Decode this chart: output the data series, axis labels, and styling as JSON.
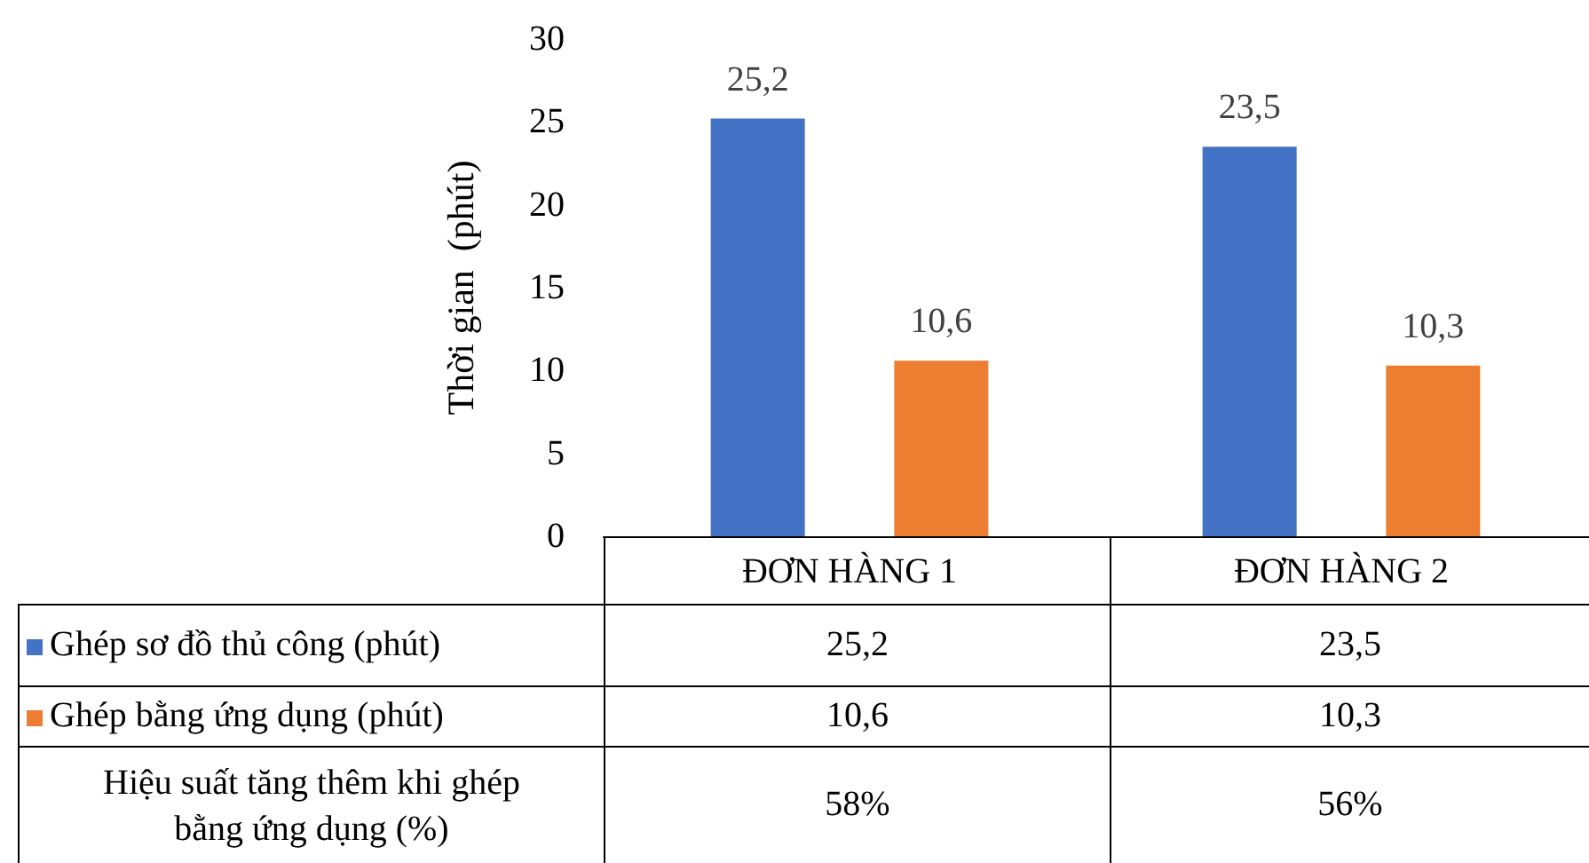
{
  "chart_data": {
    "type": "bar",
    "ylabel": "Thời gian  (phút)",
    "categories": [
      "ĐƠN HÀNG 1",
      "ĐƠN HÀNG 2"
    ],
    "series": [
      {
        "name": "Ghép sơ đồ thủ công (phút)",
        "color": "#4472c4",
        "values": [
          25.2,
          23.5
        ],
        "value_labels": [
          "25,2",
          "23,5"
        ]
      },
      {
        "name": "Ghép bằng ứng dụng (phút)",
        "color": "#ed7d31",
        "values": [
          10.6,
          10.3
        ],
        "value_labels": [
          "10,6",
          "10,3"
        ]
      }
    ],
    "ylim": [
      0,
      30
    ],
    "yticks": [
      0,
      5,
      10,
      15,
      20,
      25,
      30
    ],
    "grid": false,
    "legend": "bottom",
    "annotations": [
      "Hiệu suất tăng thêm khi ghép bằng ứng dụng (%)",
      "58%",
      "56%"
    ]
  }
}
